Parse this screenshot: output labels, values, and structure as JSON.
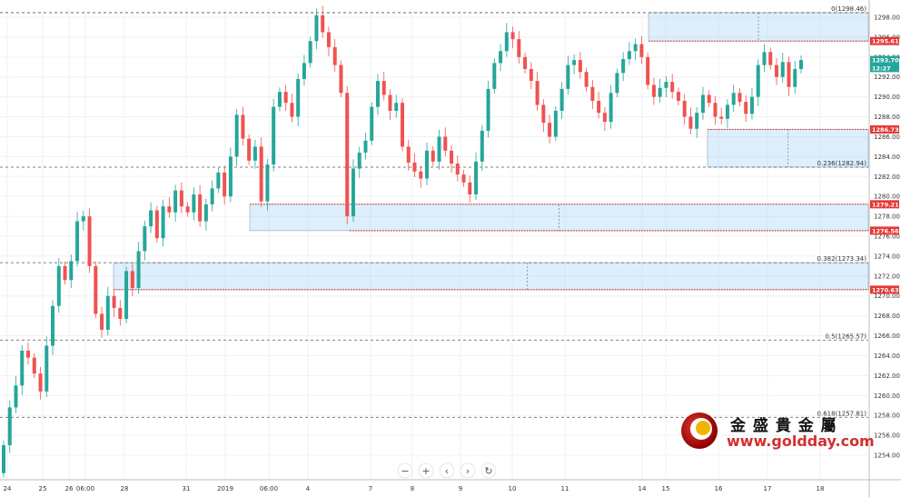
{
  "chart_data": {
    "type": "candlestick",
    "ylim": [
      1251,
      1300
    ],
    "y_ticks": [
      1254,
      1256,
      1258,
      1260,
      1262,
      1264,
      1266,
      1268,
      1270,
      1272,
      1274,
      1276,
      1278,
      1280,
      1282,
      1284,
      1286,
      1288,
      1290,
      1292,
      1294,
      1296,
      1298
    ],
    "x_ticks": [
      "24",
      "25",
      "26",
      "06:00",
      "28",
      "31",
      "2019",
      "06:00",
      "4",
      "7",
      "8",
      "9",
      "10",
      "11",
      "14",
      "15",
      "16",
      "17",
      "18"
    ],
    "grid": true,
    "fib_levels": [
      {
        "label": "0(1298.46)",
        "value": 1298.46
      },
      {
        "label": "0.236(1282.94)",
        "value": 1282.94
      },
      {
        "label": "0.382(1273.34)",
        "value": 1273.34
      },
      {
        "label": "0.5(1265.57)",
        "value": 1265.57
      },
      {
        "label": "0.618(1257.81)",
        "value": 1257.81
      }
    ],
    "zones": [
      {
        "top": 1298.46,
        "bottom": 1295.61
      },
      {
        "top": 1286.73,
        "bottom": 1282.94
      },
      {
        "top": 1279.21,
        "bottom": 1276.56
      },
      {
        "top": 1273.34,
        "bottom": 1270.63
      }
    ],
    "price_labels": [
      {
        "text": "1295.61",
        "value": 1295.61,
        "color": "#e53935"
      },
      {
        "text": "1293.70",
        "value": 1293.7,
        "color": "#26a69a"
      },
      {
        "text": "12:27",
        "value": 1292.9,
        "color": "#26a69a"
      },
      {
        "text": "1286.73",
        "value": 1286.73,
        "color": "#e53935"
      },
      {
        "text": "1279.21",
        "value": 1279.21,
        "color": "#e53935"
      },
      {
        "text": "1276.56",
        "value": 1276.56,
        "color": "#e53935"
      },
      {
        "text": "1270.63",
        "value": 1270.63,
        "color": "#e53935"
      }
    ],
    "close_series": [
      1255.0,
      1258.8,
      1261.0,
      1264.5,
      1263.8,
      1262.2,
      1260.4,
      1265.0,
      1269.0,
      1273.0,
      1271.6,
      1273.5,
      1277.5,
      1278.0,
      1273.0,
      1268.2,
      1266.6,
      1270.0,
      1268.8,
      1267.7,
      1272.5,
      1270.8,
      1274.5,
      1277.0,
      1278.6,
      1275.8,
      1279.0,
      1278.4,
      1280.6,
      1279.0,
      1278.4,
      1280.2,
      1277.5,
      1279.2,
      1280.8,
      1282.4,
      1280.0,
      1284.0,
      1288.2,
      1285.8,
      1283.6,
      1285.0,
      1279.5,
      1283.2,
      1289.0,
      1290.5,
      1289.4,
      1288.0,
      1291.8,
      1293.4,
      1295.6,
      1298.2,
      1296.5,
      1295.0,
      1293.2,
      1290.4,
      1278.0,
      1282.8,
      1284.4,
      1285.6,
      1289.0,
      1291.6,
      1290.2,
      1288.6,
      1289.4,
      1285.0,
      1283.4,
      1282.5,
      1281.8,
      1284.6,
      1283.5,
      1286.0,
      1284.6,
      1283.3,
      1282.2,
      1281.4,
      1280.2,
      1283.5,
      1286.6,
      1290.8,
      1293.4,
      1294.6,
      1296.5,
      1295.8,
      1294.0,
      1292.8,
      1291.6,
      1289.2,
      1287.4,
      1286.0,
      1288.6,
      1290.8,
      1293.2,
      1293.7,
      1292.5,
      1291.0,
      1289.6,
      1288.4,
      1287.5,
      1290.4,
      1292.4,
      1293.8,
      1294.6,
      1295.3,
      1294.0,
      1291.2,
      1290.0,
      1290.9,
      1291.5,
      1290.5,
      1289.6,
      1288.0,
      1286.8,
      1288.4,
      1290.2,
      1289.4,
      1288.0,
      1287.8,
      1289.2,
      1290.4,
      1289.5,
      1288.3,
      1290.0,
      1293.2,
      1294.5,
      1293.2,
      1292.0,
      1293.5,
      1291.0,
      1292.8,
      1293.7
    ],
    "controls": [
      "−",
      "+",
      "‹",
      "›",
      "↻"
    ]
  },
  "logo": {
    "chinese": "金 盛 貴 金 屬",
    "url": "www.goldday.com"
  }
}
